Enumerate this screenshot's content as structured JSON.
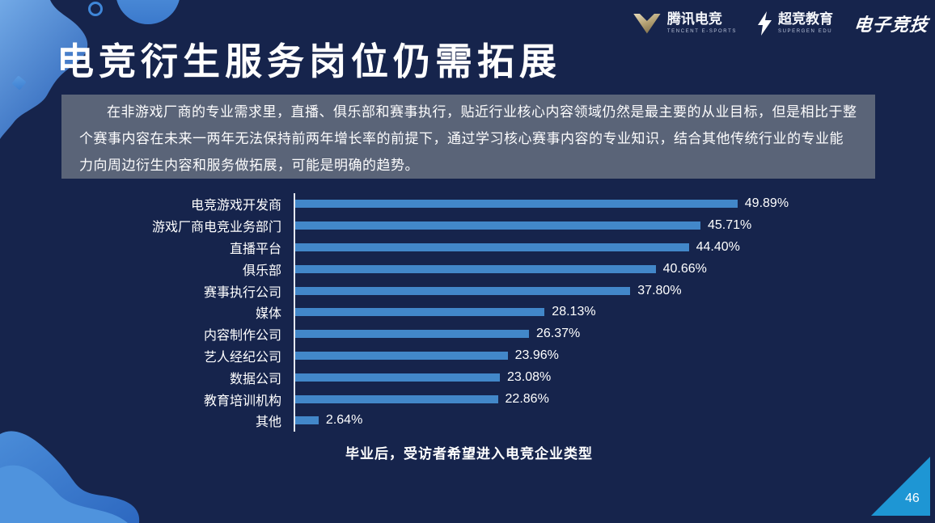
{
  "header": {
    "title": "电竞衍生服务岗位仍需拓展",
    "logos": [
      {
        "name": "腾讯电竞",
        "subtitle": "TENCENT E-SPORTS",
        "icon": "tencent-v-icon"
      },
      {
        "name": "超竞教育",
        "subtitle": "SUPERGEN EDU",
        "icon": "lightning-icon"
      },
      {
        "name": "电子竞技",
        "subtitle": "",
        "icon": "none"
      }
    ]
  },
  "summary": {
    "text": "在非游戏厂商的专业需求里，直播、俱乐部和赛事执行，贴近行业核心内容领域仍然是最主要的从业目标，但是相比于整个赛事内容在未来一两年无法保持前两年增长率的前提下，通过学习核心赛事内容的专业知识，结合其他传统行业的专业能力向周边衍生内容和服务做拓展，可能是明确的趋势。"
  },
  "chart_data": {
    "type": "bar",
    "orientation": "horizontal",
    "categories": [
      "电竞游戏开发商",
      "游戏厂商电竞业务部门",
      "直播平台",
      "俱乐部",
      "赛事执行公司",
      "媒体",
      "内容制作公司",
      "艺人经纪公司",
      "数据公司",
      "教育培训机构",
      "其他"
    ],
    "values": [
      49.89,
      45.71,
      44.4,
      40.66,
      37.8,
      28.13,
      26.37,
      23.96,
      23.08,
      22.86,
      2.64
    ],
    "value_labels": [
      "49.89%",
      "45.71%",
      "44.40%",
      "40.66%",
      "37.80%",
      "28.13%",
      "26.37%",
      "23.96%",
      "23.08%",
      "22.86%",
      "2.64%"
    ],
    "title": "毕业后，受访者希望进入电竞企业类型",
    "xlim": [
      0,
      52
    ],
    "grid": false,
    "legend": "none",
    "bar_color": "#4287c9",
    "axis_color": "#e4e8ef",
    "label_color": "#ffffff"
  },
  "footer": {
    "page_number": "46"
  },
  "colors": {
    "background": "#16244c",
    "panel": "#5a6478",
    "accent_blue": "#4287c9",
    "corner_triangle": "#1e96d4",
    "decor_blue_light": "#5d9fe4",
    "decor_blue_dark": "#2f66ba"
  }
}
